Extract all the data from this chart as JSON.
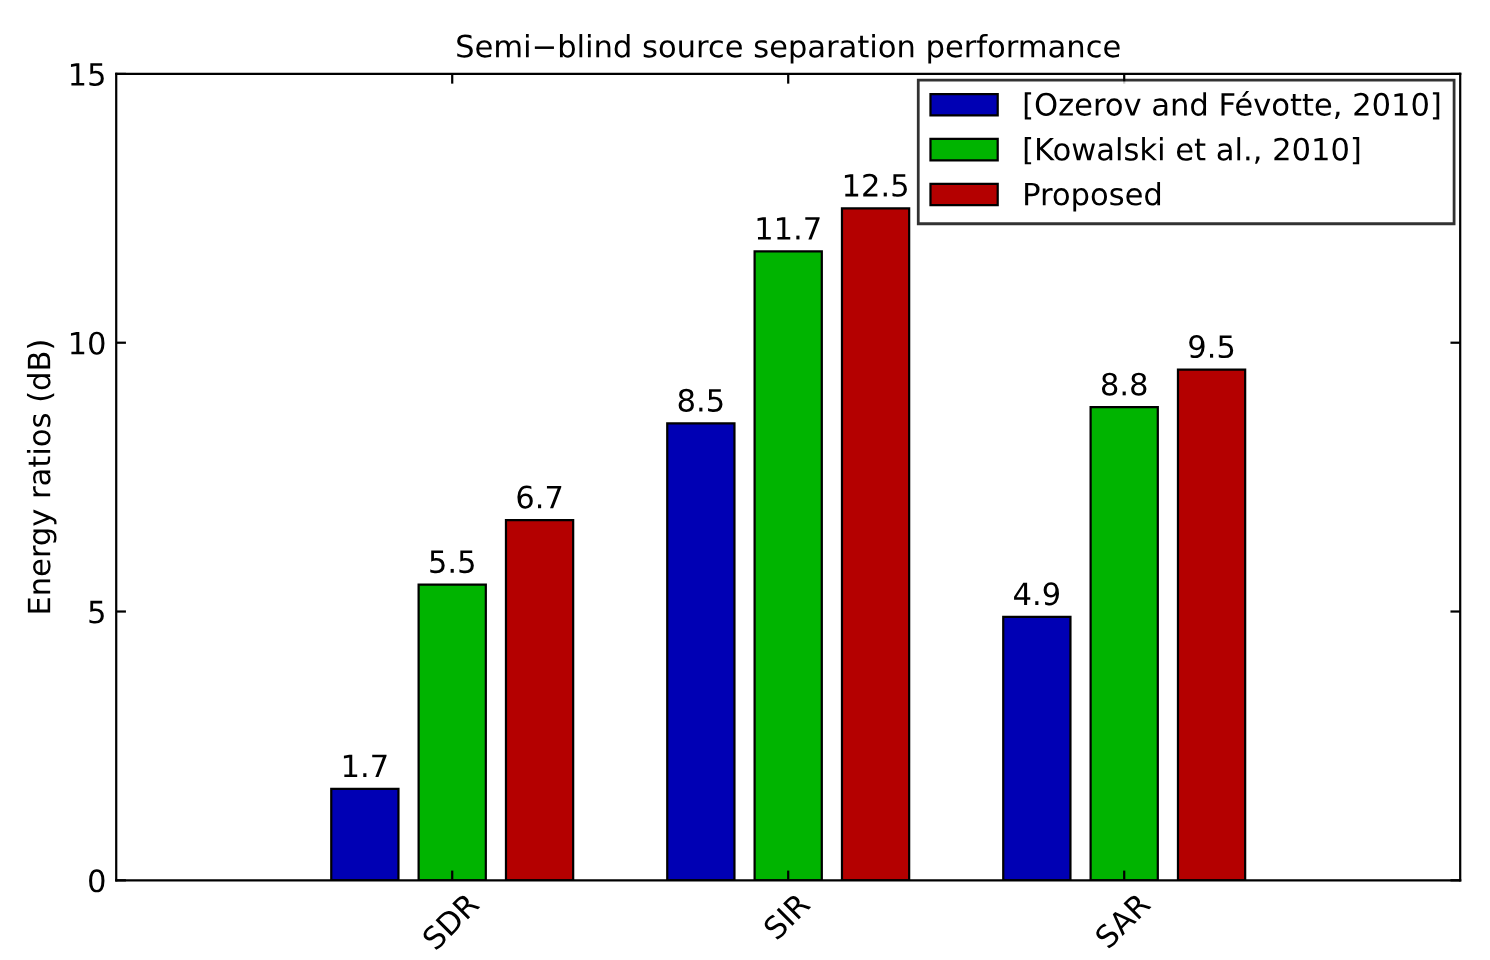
{
  "chart_data": {
    "type": "bar",
    "title": "Semi−blind source separation performance",
    "ylabel": "Energy ratios (dB)",
    "categories": [
      "SDR",
      "SIR",
      "SAR"
    ],
    "series": [
      {
        "name": "[Ozerov and Févotte, 2010]",
        "color": "#0000b4",
        "values": [
          1.7,
          8.5,
          4.9
        ]
      },
      {
        "name": "[Kowalski et al., 2010]",
        "color": "#00b400",
        "values": [
          5.5,
          11.7,
          8.8
        ]
      },
      {
        "name": "Proposed",
        "color": "#b40000",
        "values": [
          6.7,
          12.5,
          9.5
        ]
      }
    ],
    "ylim": [
      0,
      15
    ],
    "yticks": [
      0,
      5,
      10,
      15
    ],
    "grid": false,
    "legend": "top right",
    "data_labels": true
  }
}
